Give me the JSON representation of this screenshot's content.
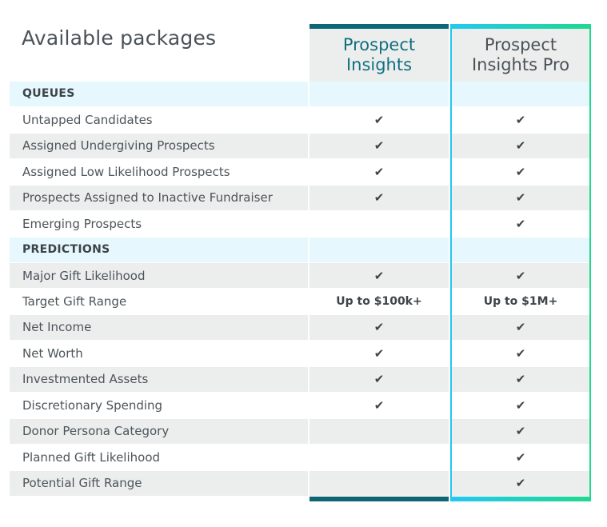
{
  "title": "Available packages",
  "columns": [
    {
      "line1": "Prospect",
      "line2": "Insights"
    },
    {
      "line1": "Prospect",
      "line2": "Insights Pro"
    }
  ],
  "check_glyph": "✔",
  "rows": [
    {
      "type": "section",
      "label": "QUEUES",
      "a": "",
      "b": ""
    },
    {
      "type": "plain",
      "label": "Untapped Candidates",
      "a": "✔",
      "b": "✔"
    },
    {
      "type": "shade",
      "label": "Assigned Undergiving Prospects",
      "a": "✔",
      "b": "✔"
    },
    {
      "type": "plain",
      "label": "Assigned Low Likelihood Prospects",
      "a": "✔",
      "b": "✔"
    },
    {
      "type": "shade",
      "label": "Prospects Assigned to Inactive Fundraiser",
      "a": "✔",
      "b": "✔"
    },
    {
      "type": "plain",
      "label": "Emerging Prospects",
      "a": "",
      "b": "✔"
    },
    {
      "type": "section",
      "label": "PREDICTIONS",
      "a": "",
      "b": ""
    },
    {
      "type": "shade",
      "label": "Major Gift Likelihood",
      "a": "✔",
      "b": "✔"
    },
    {
      "type": "plain",
      "label": "Target Gift Range",
      "a": "Up to $100k+",
      "b": "Up to $1M+"
    },
    {
      "type": "shade",
      "label": "Net Income",
      "a": "✔",
      "b": "✔"
    },
    {
      "type": "plain",
      "label": "Net Worth",
      "a": "✔",
      "b": "✔"
    },
    {
      "type": "shade",
      "label": "Investmented Assets",
      "a": "✔",
      "b": "✔"
    },
    {
      "type": "plain",
      "label": "Discretionary Spending",
      "a": "✔",
      "b": "✔"
    },
    {
      "type": "shade",
      "label": "Donor Persona Category",
      "a": "",
      "b": "✔"
    },
    {
      "type": "plain",
      "label": "Planned Gift Likelihood",
      "a": "",
      "b": "✔"
    },
    {
      "type": "shade",
      "label": "Potential Gift Range",
      "a": "",
      "b": "✔"
    }
  ],
  "colors": {
    "basic_accent": "#0d6673",
    "pro_gradient_start": "#24c8f0",
    "pro_gradient_end": "#20d88e",
    "section_bg": "#e6f8fd",
    "shade_bg": "#eceeee"
  }
}
